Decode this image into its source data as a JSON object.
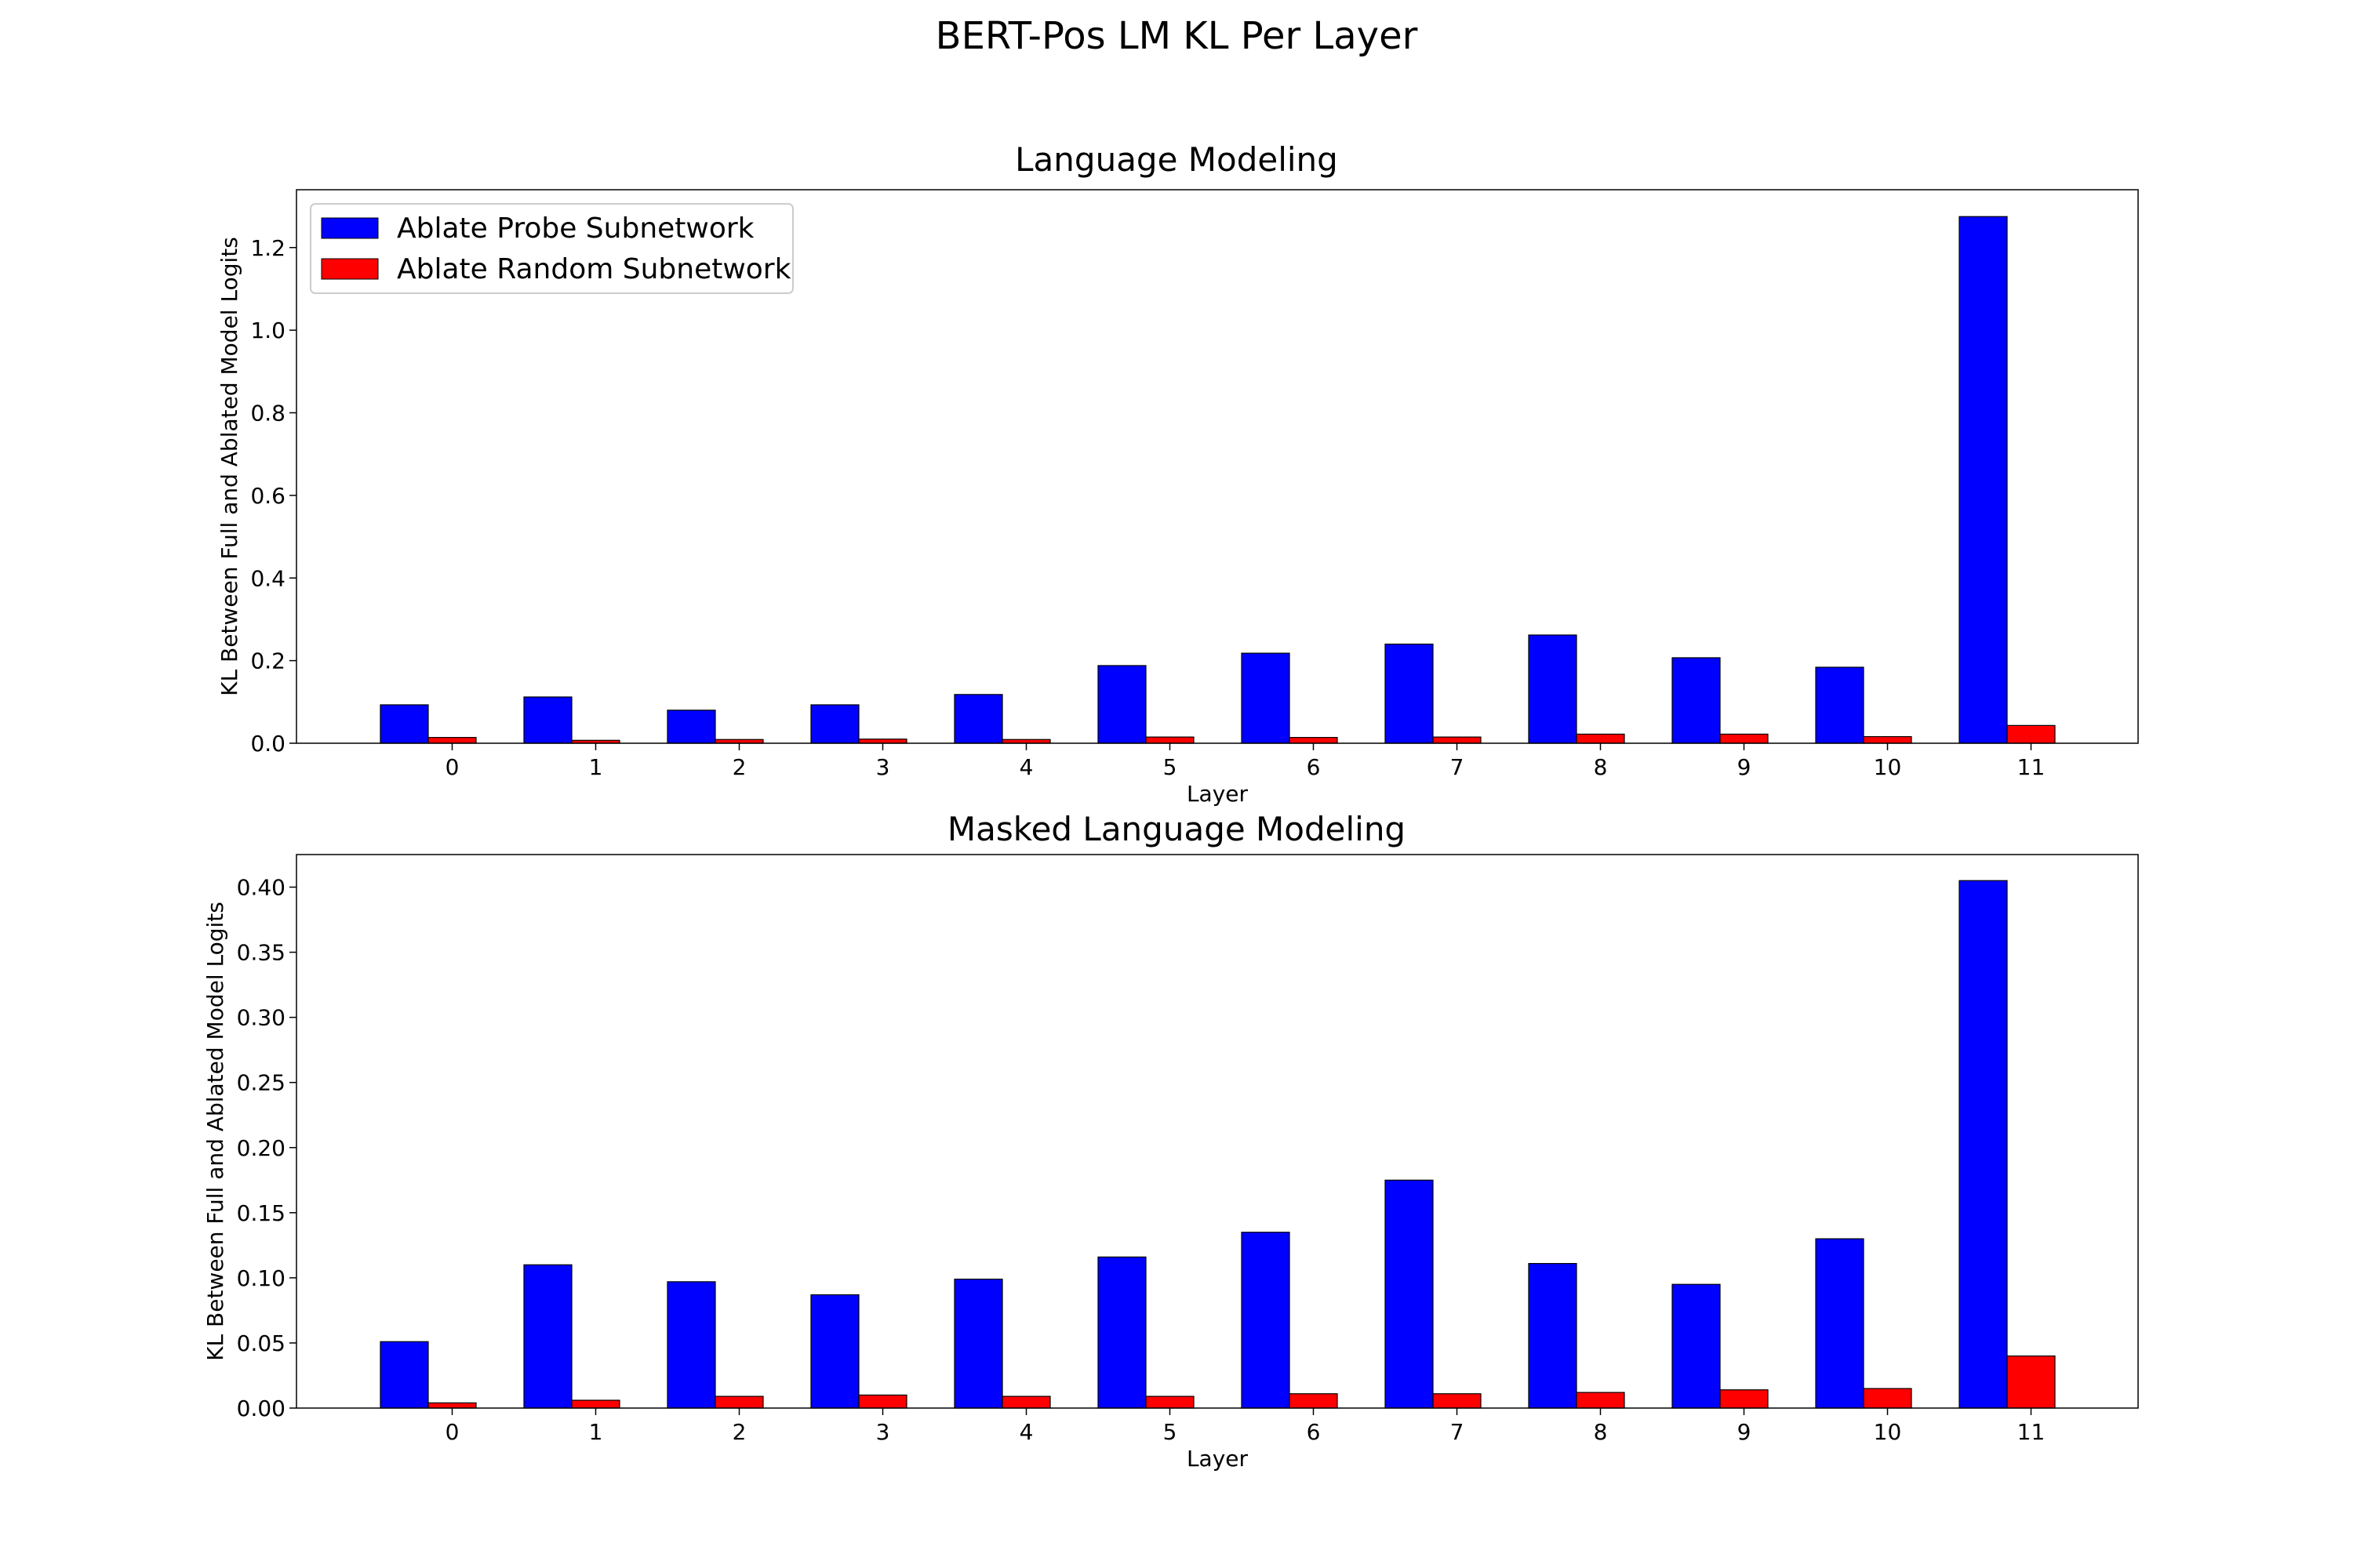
{
  "figure": {
    "title": "BERT-Pos LM KL Per Layer"
  },
  "chart_data": [
    {
      "type": "bar",
      "title": "Language Modeling",
      "xlabel": "Layer",
      "ylabel": "KL Between Full and Ablated Model Logits",
      "categories": [
        "0",
        "1",
        "2",
        "3",
        "4",
        "5",
        "6",
        "7",
        "8",
        "9",
        "10",
        "11"
      ],
      "ylim": [
        0,
        1.34
      ],
      "yticks": [
        0.0,
        0.2,
        0.4,
        0.6,
        0.8,
        1.0,
        1.2
      ],
      "ytick_labels": [
        "0.0",
        "0.2",
        "0.4",
        "0.6",
        "0.8",
        "1.0",
        "1.2"
      ],
      "grid": false,
      "legend_position": "top-left",
      "series": [
        {
          "name": "Ablate Probe Subnetwork",
          "color": "#0000ff",
          "values": [
            0.093,
            0.112,
            0.08,
            0.093,
            0.118,
            0.188,
            0.218,
            0.24,
            0.262,
            0.207,
            0.184,
            1.275
          ]
        },
        {
          "name": "Ablate Random Subnetwork",
          "color": "#ff0000",
          "values": [
            0.014,
            0.007,
            0.009,
            0.01,
            0.009,
            0.015,
            0.014,
            0.015,
            0.022,
            0.022,
            0.016,
            0.043
          ]
        }
      ]
    },
    {
      "type": "bar",
      "title": "Masked Language Modeling",
      "xlabel": "Layer",
      "ylabel": "KL Between Full and Ablated Model Logits",
      "categories": [
        "0",
        "1",
        "2",
        "3",
        "4",
        "5",
        "6",
        "7",
        "8",
        "9",
        "10",
        "11"
      ],
      "ylim": [
        0,
        0.425
      ],
      "yticks": [
        0.0,
        0.05,
        0.1,
        0.15,
        0.2,
        0.25,
        0.3,
        0.35,
        0.4
      ],
      "ytick_labels": [
        "0.00",
        "0.05",
        "0.10",
        "0.15",
        "0.20",
        "0.25",
        "0.30",
        "0.35",
        "0.40"
      ],
      "grid": false,
      "series": [
        {
          "name": "Ablate Probe Subnetwork",
          "color": "#0000ff",
          "values": [
            0.051,
            0.11,
            0.097,
            0.087,
            0.099,
            0.116,
            0.135,
            0.175,
            0.111,
            0.095,
            0.13,
            0.405
          ]
        },
        {
          "name": "Ablate Random Subnetwork",
          "color": "#ff0000",
          "values": [
            0.004,
            0.006,
            0.009,
            0.01,
            0.009,
            0.009,
            0.011,
            0.011,
            0.012,
            0.014,
            0.015,
            0.04
          ]
        }
      ]
    }
  ]
}
